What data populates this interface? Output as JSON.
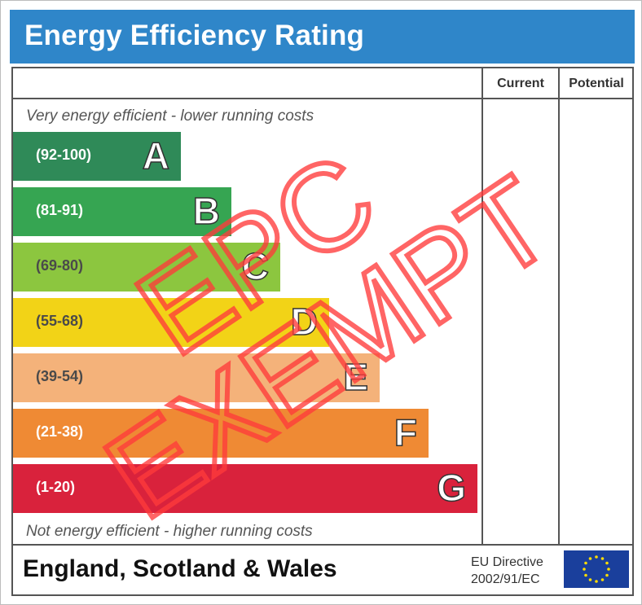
{
  "header": {
    "title": "Energy Efficiency Rating"
  },
  "columns": {
    "current": "Current",
    "potential": "Potential"
  },
  "captions": {
    "top": "Very energy efficient - lower running costs",
    "bottom": "Not energy efficient - higher running costs"
  },
  "bands": [
    {
      "range": "(92-100)",
      "letter": "A",
      "color": "#2f8a58"
    },
    {
      "range": "(81-91)",
      "letter": "B",
      "color": "#36a552"
    },
    {
      "range": "(69-80)",
      "letter": "C",
      "color": "#8cc63f"
    },
    {
      "range": "(55-68)",
      "letter": "D",
      "color": "#f2d317"
    },
    {
      "range": "(39-54)",
      "letter": "E",
      "color": "#f4b27a"
    },
    {
      "range": "(21-38)",
      "letter": "F",
      "color": "#ef8a34"
    },
    {
      "range": "(1-20)",
      "letter": "G",
      "color": "#d9223c"
    }
  ],
  "footer": {
    "region": "England, Scotland & Wales",
    "directive_line1": "EU Directive",
    "directive_line2": "2002/91/EC"
  },
  "stamp": {
    "line1": "EPC",
    "line2": "EXEMPT",
    "color": "#ff3b3b"
  }
}
